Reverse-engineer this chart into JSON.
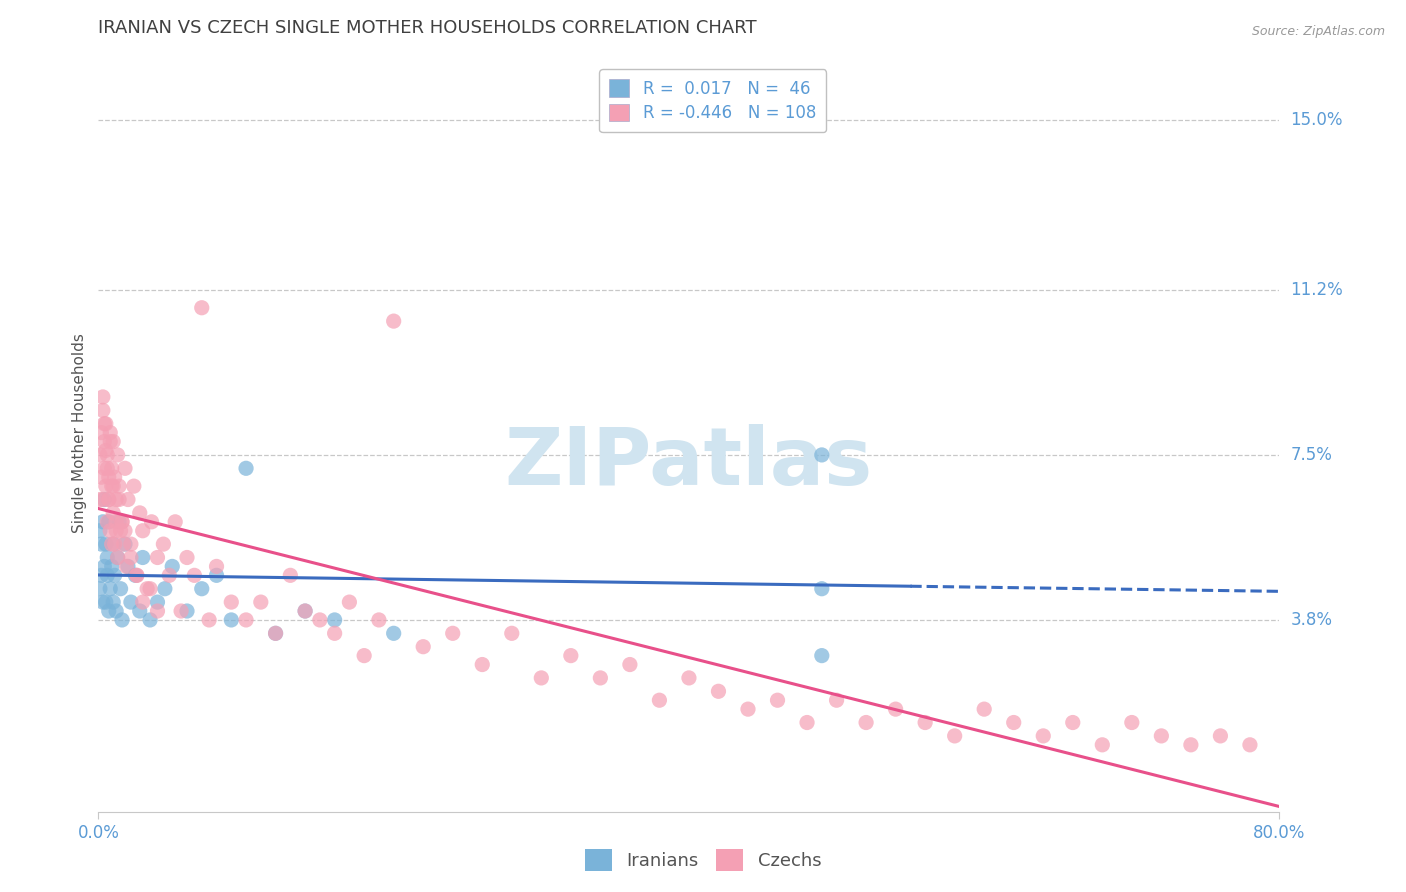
{
  "title": "IRANIAN VS CZECH SINGLE MOTHER HOUSEHOLDS CORRELATION CHART",
  "source_text": "Source: ZipAtlas.com",
  "ylabel": "Single Mother Households",
  "watermark": "ZIPatlas",
  "xlim": [
    0.0,
    0.8
  ],
  "ylim": [
    -0.005,
    0.165
  ],
  "yticks": [
    0.038,
    0.075,
    0.112,
    0.15
  ],
  "ytick_labels": [
    "3.8%",
    "7.5%",
    "11.2%",
    "15.0%"
  ],
  "iranians": {
    "color": "#7ab3d9",
    "line_color": "#3a6bbf",
    "x": [
      0.001,
      0.001,
      0.002,
      0.002,
      0.003,
      0.003,
      0.004,
      0.004,
      0.005,
      0.005,
      0.006,
      0.006,
      0.007,
      0.007,
      0.008,
      0.009,
      0.01,
      0.01,
      0.011,
      0.012,
      0.013,
      0.014,
      0.015,
      0.016,
      0.018,
      0.02,
      0.022,
      0.025,
      0.028,
      0.03,
      0.035,
      0.04,
      0.045,
      0.05,
      0.06,
      0.07,
      0.08,
      0.09,
      0.1,
      0.12,
      0.14,
      0.16,
      0.2,
      0.49,
      0.49,
      0.49
    ],
    "y": [
      0.058,
      0.045,
      0.055,
      0.048,
      0.06,
      0.042,
      0.05,
      0.065,
      0.042,
      0.055,
      0.048,
      0.052,
      0.04,
      0.06,
      0.045,
      0.05,
      0.042,
      0.055,
      0.048,
      0.04,
      0.052,
      0.06,
      0.045,
      0.038,
      0.055,
      0.05,
      0.042,
      0.048,
      0.04,
      0.052,
      0.038,
      0.042,
      0.045,
      0.05,
      0.04,
      0.045,
      0.048,
      0.038,
      0.072,
      0.035,
      0.04,
      0.038,
      0.035,
      0.075,
      0.045,
      0.03
    ]
  },
  "czechs": {
    "color": "#f4a0b4",
    "line_color": "#e8508a",
    "x": [
      0.001,
      0.001,
      0.002,
      0.002,
      0.003,
      0.003,
      0.004,
      0.004,
      0.005,
      0.005,
      0.006,
      0.006,
      0.007,
      0.007,
      0.008,
      0.008,
      0.009,
      0.009,
      0.01,
      0.01,
      0.011,
      0.011,
      0.012,
      0.012,
      0.013,
      0.013,
      0.014,
      0.015,
      0.016,
      0.017,
      0.018,
      0.019,
      0.02,
      0.022,
      0.024,
      0.026,
      0.028,
      0.03,
      0.033,
      0.036,
      0.04,
      0.044,
      0.048,
      0.052,
      0.056,
      0.06,
      0.065,
      0.07,
      0.075,
      0.08,
      0.09,
      0.1,
      0.11,
      0.12,
      0.13,
      0.14,
      0.15,
      0.16,
      0.17,
      0.18,
      0.19,
      0.2,
      0.22,
      0.24,
      0.26,
      0.28,
      0.3,
      0.32,
      0.34,
      0.36,
      0.38,
      0.4,
      0.42,
      0.44,
      0.46,
      0.48,
      0.5,
      0.52,
      0.54,
      0.56,
      0.58,
      0.6,
      0.62,
      0.64,
      0.66,
      0.68,
      0.7,
      0.72,
      0.74,
      0.76,
      0.78,
      0.003,
      0.004,
      0.005,
      0.006,
      0.007,
      0.008,
      0.009,
      0.01,
      0.012,
      0.014,
      0.016,
      0.018,
      0.022,
      0.026,
      0.03,
      0.035,
      0.04
    ],
    "y": [
      0.075,
      0.065,
      0.08,
      0.07,
      0.085,
      0.065,
      0.078,
      0.072,
      0.068,
      0.082,
      0.06,
      0.075,
      0.07,
      0.065,
      0.08,
      0.058,
      0.072,
      0.068,
      0.062,
      0.078,
      0.055,
      0.07,
      0.065,
      0.06,
      0.075,
      0.052,
      0.068,
      0.058,
      0.06,
      0.055,
      0.072,
      0.05,
      0.065,
      0.055,
      0.068,
      0.048,
      0.062,
      0.058,
      0.045,
      0.06,
      0.052,
      0.055,
      0.048,
      0.06,
      0.04,
      0.052,
      0.048,
      0.108,
      0.038,
      0.05,
      0.042,
      0.038,
      0.042,
      0.035,
      0.048,
      0.04,
      0.038,
      0.035,
      0.042,
      0.03,
      0.038,
      0.105,
      0.032,
      0.035,
      0.028,
      0.035,
      0.025,
      0.03,
      0.025,
      0.028,
      0.02,
      0.025,
      0.022,
      0.018,
      0.02,
      0.015,
      0.02,
      0.015,
      0.018,
      0.015,
      0.012,
      0.018,
      0.015,
      0.012,
      0.015,
      0.01,
      0.015,
      0.012,
      0.01,
      0.012,
      0.01,
      0.088,
      0.082,
      0.076,
      0.072,
      0.065,
      0.078,
      0.055,
      0.068,
      0.058,
      0.065,
      0.06,
      0.058,
      0.052,
      0.048,
      0.042,
      0.045,
      0.04
    ]
  },
  "bg_color": "#ffffff",
  "grid_color": "#c8c8c8",
  "title_color": "#404040",
  "axis_label_color": "#555555",
  "tick_label_color": "#5b9bd5",
  "watermark_color": "#d0e4f0",
  "title_fontsize": 13,
  "axis_label_fontsize": 11,
  "tick_fontsize": 12,
  "legend_fontsize": 12,
  "watermark_fontsize": 58
}
